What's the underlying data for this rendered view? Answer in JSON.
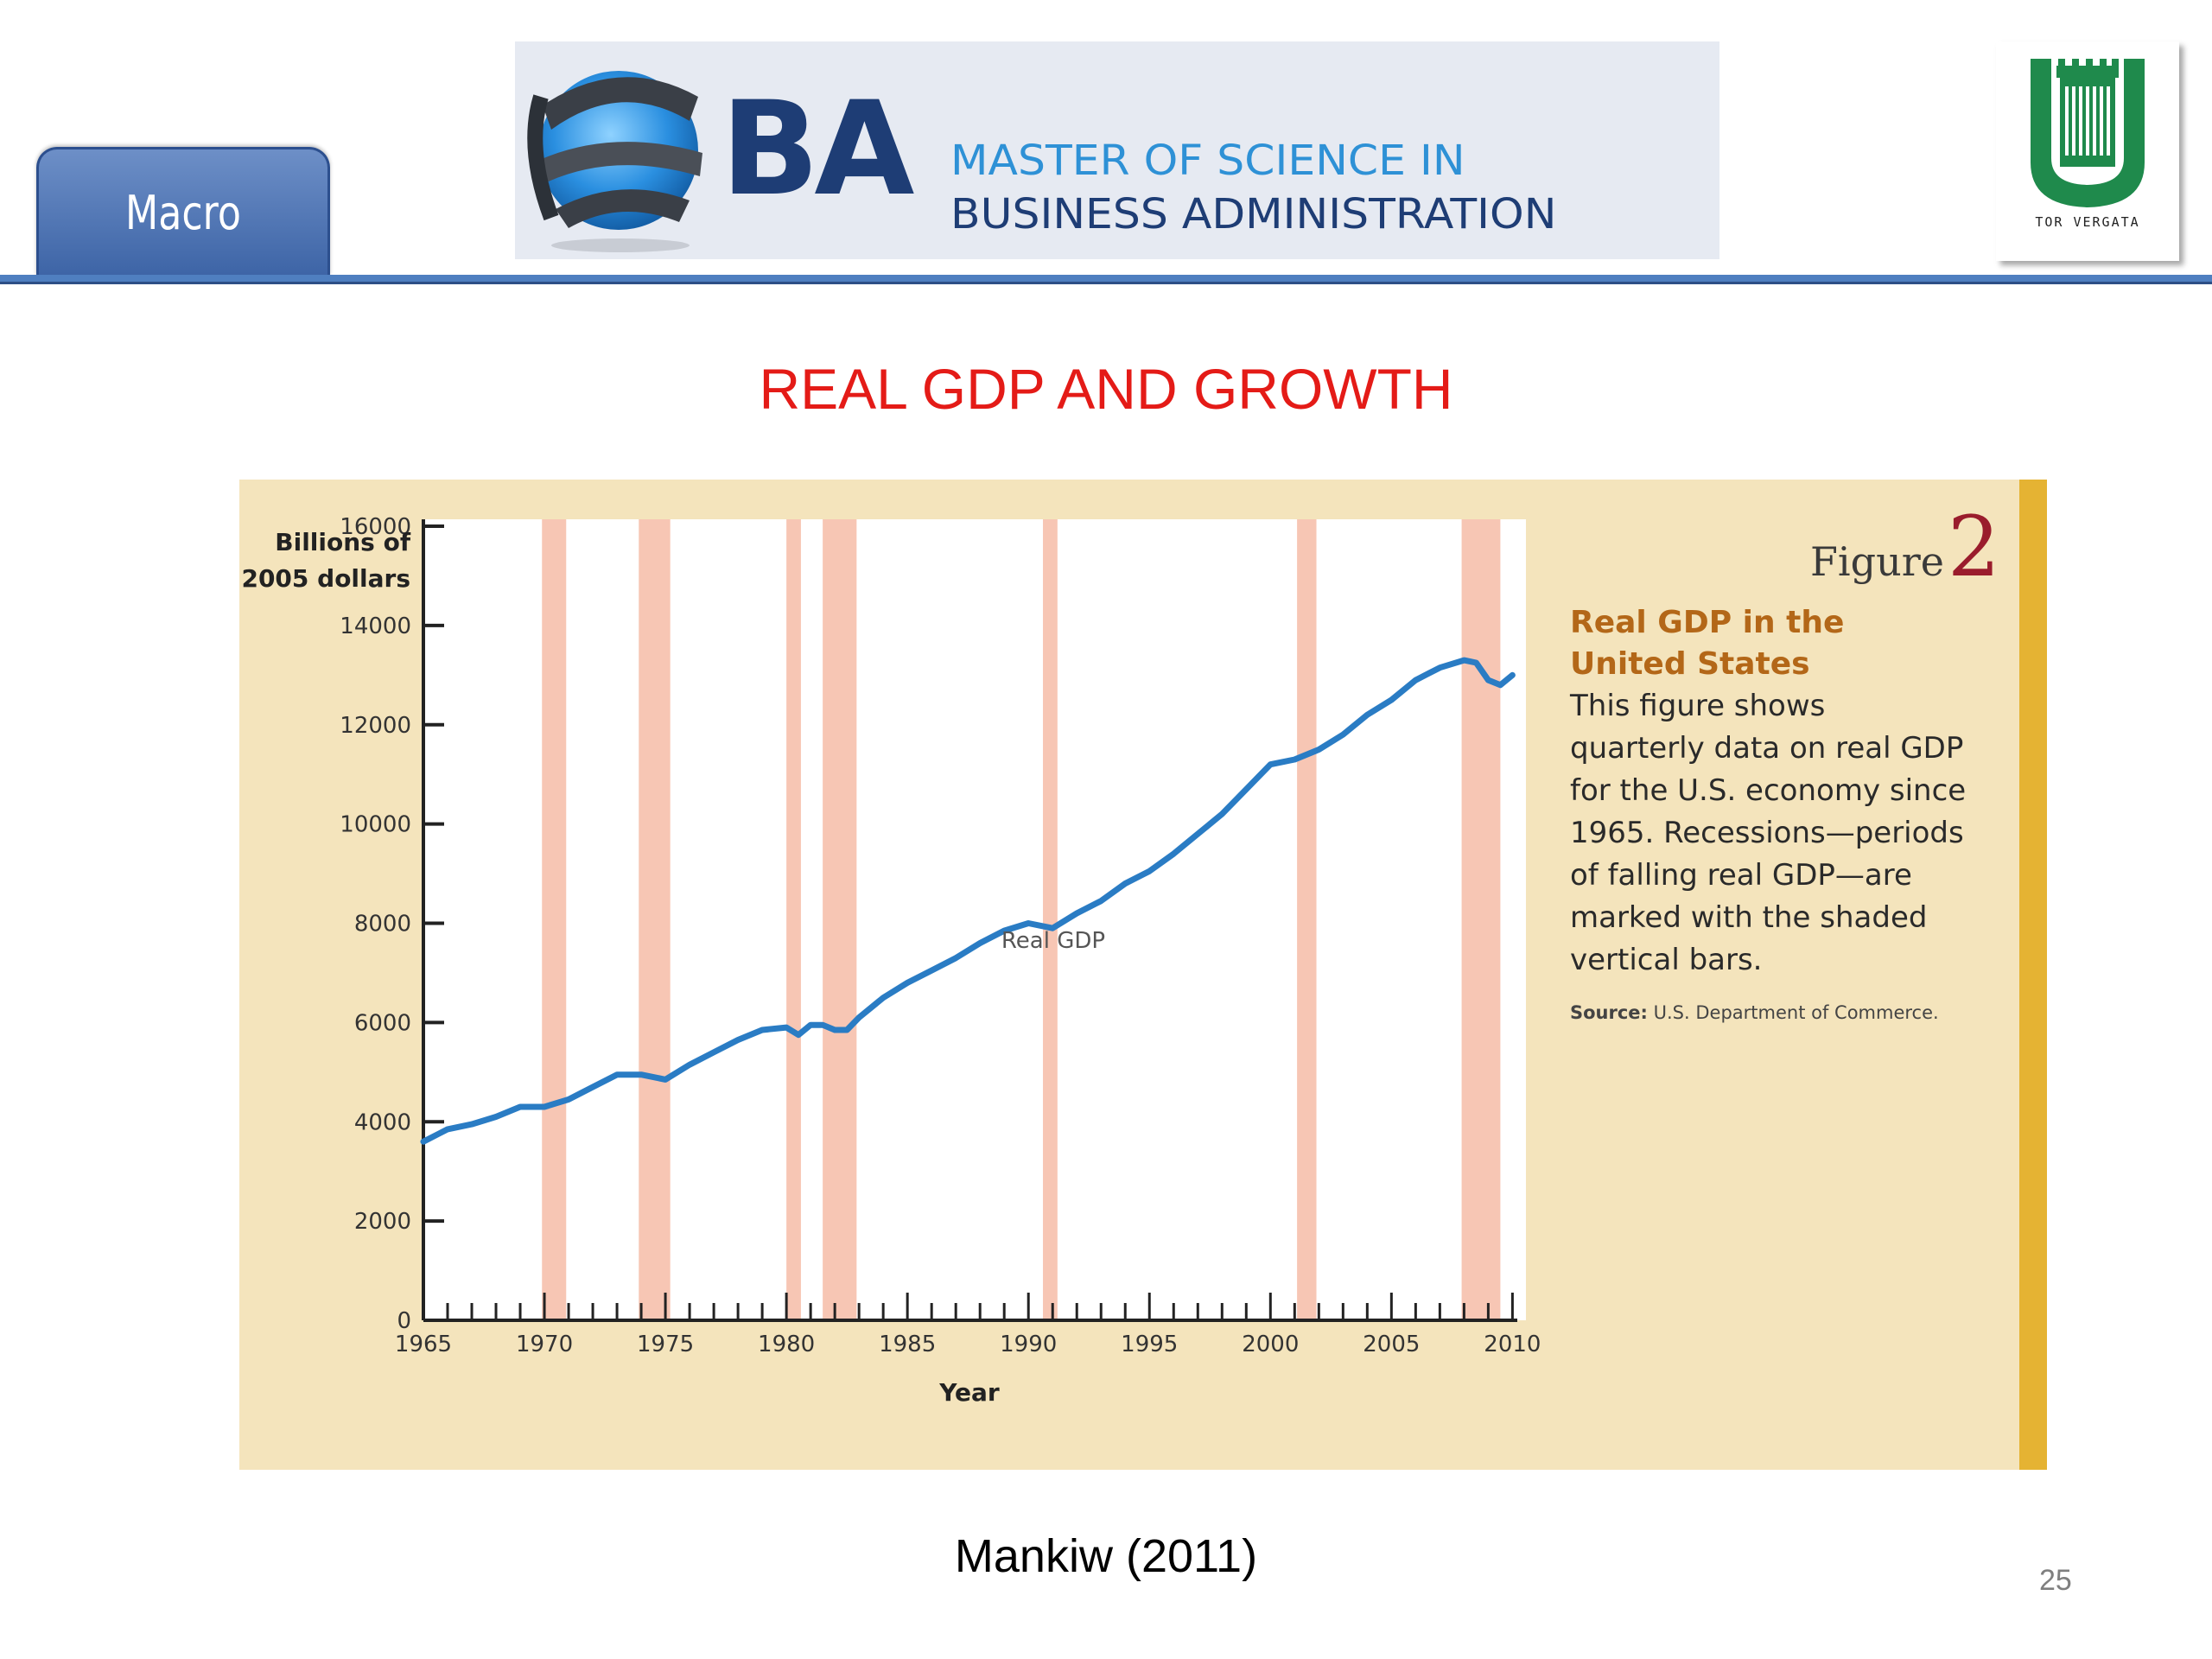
{
  "header": {
    "tab_label": "Macro",
    "banner": {
      "mark": "BA",
      "line1": "MASTER OF SCIENCE IN",
      "line2": "BUSINESS ADMINISTRATION"
    },
    "university": "TOR VERGATA",
    "colors": {
      "tab": "#3d64a6",
      "banner_dark": "#1e3d75",
      "banner_light": "#2e91d6",
      "logo_green": "#1f8a4c"
    }
  },
  "slide": {
    "title": "REAL GDP AND GROWTH",
    "citation": "Mankiw (2011)",
    "page_number": "25"
  },
  "figure": {
    "word": "Figure",
    "number": "2",
    "caption_title": "Real GDP in the United States",
    "caption_text": "This figure shows quarterly data on real GDP for the U.S. economy since 1965. Recessions—periods of falling real GDP—are marked with the shaded vertical bars.",
    "source_label": "Source:",
    "source_text": "U.S. Department of Commerce."
  },
  "chart_data": {
    "type": "line",
    "ylabel": "Billions of 2005 dollars",
    "xlabel": "Year",
    "ylim": [
      0,
      16000
    ],
    "xlim": [
      1965,
      2010.2
    ],
    "yticks": [
      0,
      2000,
      4000,
      6000,
      8000,
      10000,
      12000,
      14000,
      16000
    ],
    "xticks": [
      1965,
      1970,
      1975,
      1980,
      1985,
      1990,
      1995,
      2000,
      2005,
      2010
    ],
    "grid": false,
    "series": [
      {
        "name": "Real GDP",
        "color": "#2a7cc4",
        "x": [
          1965,
          1966,
          1967,
          1968,
          1969,
          1970,
          1971,
          1972,
          1973,
          1974,
          1975,
          1976,
          1977,
          1978,
          1979,
          1980,
          1980.5,
          1981,
          1981.5,
          1982,
          1982.5,
          1983,
          1984,
          1985,
          1986,
          1987,
          1988,
          1989,
          1990,
          1991,
          1992,
          1993,
          1994,
          1995,
          1996,
          1997,
          1998,
          1999,
          2000,
          2001,
          2002,
          2003,
          2004,
          2005,
          2006,
          2007,
          2008,
          2008.5,
          2009,
          2009.5,
          2010
        ],
        "values": [
          3600,
          3850,
          3950,
          4100,
          4300,
          4300,
          4450,
          4700,
          4950,
          4950,
          4850,
          5150,
          5400,
          5650,
          5850,
          5900,
          5750,
          5950,
          5950,
          5850,
          5850,
          6100,
          6500,
          6800,
          7050,
          7300,
          7600,
          7850,
          8000,
          7900,
          8200,
          8450,
          8800,
          9050,
          9400,
          9800,
          10200,
          10700,
          11200,
          11300,
          11500,
          11800,
          12200,
          12500,
          12900,
          13150,
          13300,
          13250,
          12900,
          12800,
          13000
        ]
      }
    ],
    "recessions": [
      [
        1969.9,
        1970.9
      ],
      [
        1973.9,
        1975.2
      ],
      [
        1980.0,
        1980.6
      ],
      [
        1981.5,
        1982.9
      ],
      [
        1990.6,
        1991.2
      ],
      [
        2001.1,
        2001.9
      ],
      [
        2007.9,
        2009.5
      ]
    ],
    "recession_color": "#f7c6b4",
    "annotations": [
      "Real GDP"
    ]
  }
}
